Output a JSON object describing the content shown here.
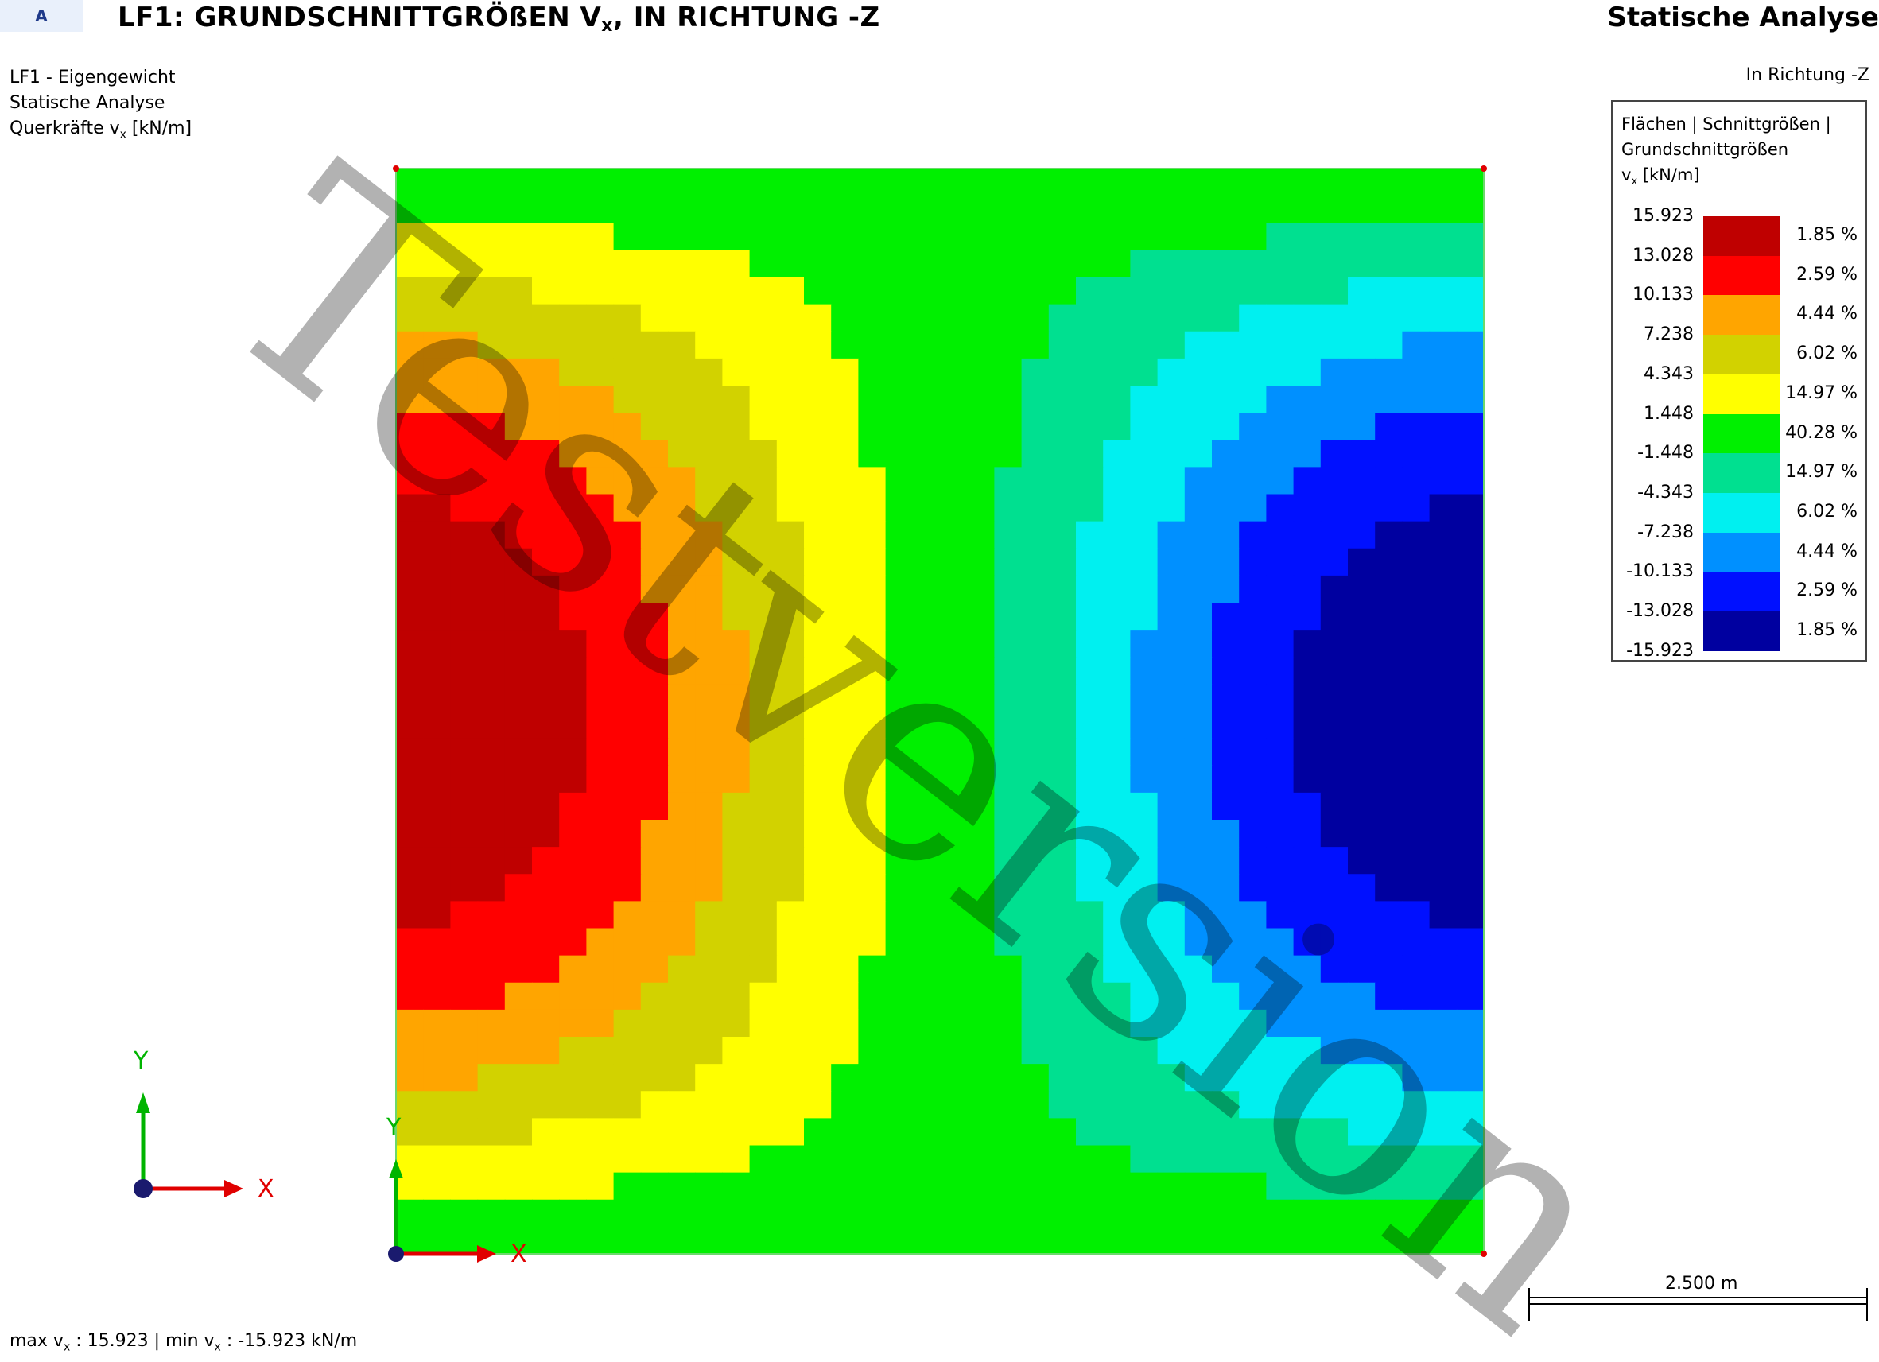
{
  "header": {
    "tab": "A",
    "title_pre": "LF1: GRUNDSCHNITTGRÖßEN V",
    "title_sub": "x",
    "title_post": ", IN RICHTUNG -Z",
    "analysis": "Statische Analyse"
  },
  "info": {
    "line1": "LF1 - Eigengewicht",
    "line2": "Statische Analyse",
    "line3_pre": "Querkräfte v",
    "line3_sub": "x",
    "line3_post": " [kN/m]"
  },
  "direction": "In Richtung -Z",
  "legend": {
    "title_line1": "Flächen | Schnittgrößen |",
    "title_line2": "Grundschnittgrößen",
    "title_line3_pre": "v",
    "title_line3_sub": "x",
    "title_line3_post": " [kN/m]",
    "ticks": [
      "15.923",
      "13.028",
      "10.133",
      "7.238",
      "4.343",
      "1.448",
      "-1.448",
      "-4.343",
      "-7.238",
      "-10.133",
      "-13.028",
      "-15.923"
    ],
    "bands": [
      {
        "color": "#bf0000",
        "pct": "1.85 %"
      },
      {
        "color": "#ff0000",
        "pct": "2.59 %"
      },
      {
        "color": "#ffa500",
        "pct": "4.44 %"
      },
      {
        "color": "#d2d200",
        "pct": "6.02 %"
      },
      {
        "color": "#ffff00",
        "pct": "14.97 %"
      },
      {
        "color": "#00f000",
        "pct": "40.28 %"
      },
      {
        "color": "#00e090",
        "pct": "14.97 %"
      },
      {
        "color": "#00f0f0",
        "pct": "6.02 %"
      },
      {
        "color": "#0090ff",
        "pct": "4.44 %"
      },
      {
        "color": "#0010ff",
        "pct": "2.59 %"
      },
      {
        "color": "#0000a0",
        "pct": "1.85 %"
      }
    ]
  },
  "axes": {
    "global_x": "X",
    "global_y": "Y",
    "local_x": "X",
    "local_y": "Y"
  },
  "scale": "2.500 m",
  "footer": {
    "max_pre": "max v",
    "max_sub": "x",
    "max_post": " : 15.923",
    "sep": " | ",
    "min_pre": "min v",
    "min_sub": "x",
    "min_post": " : -15.923 kN/m"
  },
  "watermark": "Testversion"
}
